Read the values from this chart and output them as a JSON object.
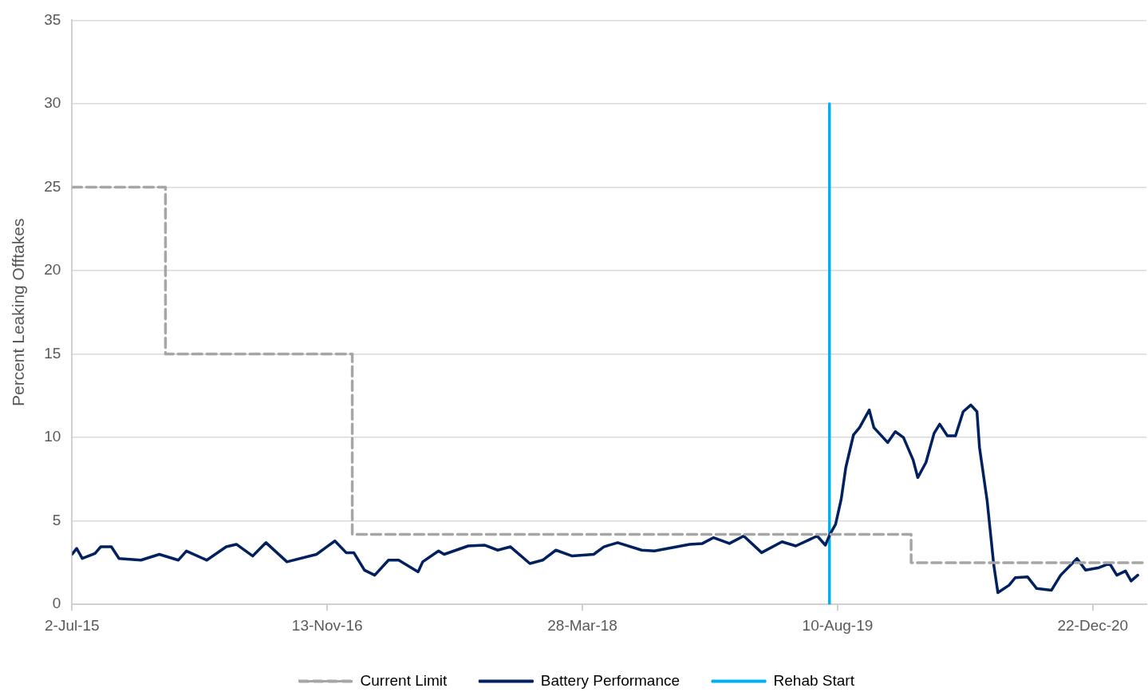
{
  "chart_data": {
    "type": "line",
    "ylabel": "Percent Leaking Offtakes",
    "xlim": [
      "2015-07-02",
      "2021-04-06"
    ],
    "xticks": [
      {
        "value": "2015-07-02",
        "label": "2-Jul-15"
      },
      {
        "value": "2016-11-13",
        "label": "13-Nov-16"
      },
      {
        "value": "2018-03-28",
        "label": "28-Mar-18"
      },
      {
        "value": "2019-08-10",
        "label": "10-Aug-19"
      },
      {
        "value": "2020-12-22",
        "label": "22-Dec-20"
      }
    ],
    "ylim": [
      0,
      35
    ],
    "yticks": [
      0,
      5,
      10,
      15,
      20,
      25,
      30,
      35
    ],
    "grid": "y",
    "legend": "bottom",
    "marker": "none",
    "series": [
      {
        "name": "Current Limit",
        "type": "step",
        "line_style": "dashed",
        "color": "#a6a6a6",
        "x": [
          "2015-07-02",
          "2016-01-01",
          "2017-01-01",
          "2020-01-01",
          "2021-04-06"
        ],
        "values": [
          25,
          15,
          4.2,
          2.5,
          2.5
        ]
      },
      {
        "name": "Battery Performance",
        "line_style": "solid",
        "color": "#002060",
        "x": [
          "2015-07-02",
          "2015-07-11",
          "2015-07-22",
          "2015-08-16",
          "2015-08-27",
          "2015-09-17",
          "2015-10-02",
          "2015-11-14",
          "2015-12-20",
          "2016-01-26",
          "2016-02-11",
          "2016-03-22",
          "2016-04-29",
          "2016-05-19",
          "2016-06-20",
          "2016-07-16",
          "2016-08-26",
          "2016-10-23",
          "2016-11-12",
          "2016-11-28",
          "2016-12-20",
          "2017-01-04",
          "2017-01-25",
          "2017-02-14",
          "2017-03-13",
          "2017-04-02",
          "2017-05-10",
          "2017-05-19",
          "2017-06-19",
          "2017-06-30",
          "2017-08-16",
          "2017-09-17",
          "2017-10-13",
          "2017-11-07",
          "2017-12-15",
          "2018-01-09",
          "2018-02-04",
          "2018-03-08",
          "2018-04-19",
          "2018-05-09",
          "2018-06-05",
          "2018-07-22",
          "2018-08-16",
          "2018-10-24",
          "2018-11-18",
          "2018-12-10",
          "2019-01-10",
          "2019-02-07",
          "2019-03-14",
          "2019-04-23",
          "2019-05-20",
          "2019-07-01",
          "2019-07-17",
          "2019-07-26",
          "2019-08-06",
          "2019-08-17",
          "2019-08-26",
          "2019-09-10",
          "2019-09-22",
          "2019-10-11",
          "2019-10-20",
          "2019-11-16",
          "2019-12-01",
          "2019-12-17",
          "2020-01-05",
          "2020-01-14",
          "2020-01-30",
          "2020-02-15",
          "2020-02-26",
          "2020-03-12",
          "2020-03-28",
          "2020-04-12",
          "2020-04-27",
          "2020-05-09",
          "2020-05-14",
          "2020-05-29",
          "2020-06-11",
          "2020-06-19",
          "2020-07-11",
          "2020-07-23",
          "2020-08-16",
          "2020-09-03",
          "2020-10-02",
          "2020-10-20",
          "2020-11-21",
          "2020-12-08",
          "2021-01-03",
          "2021-01-24",
          "2021-02-07",
          "2021-02-24",
          "2021-03-07",
          "2021-03-20"
        ],
        "values": [
          3.0,
          3.35,
          2.75,
          3.05,
          3.45,
          3.45,
          2.75,
          2.65,
          3.0,
          2.65,
          3.2,
          2.65,
          3.45,
          3.6,
          2.9,
          3.7,
          2.55,
          3.0,
          3.45,
          3.8,
          3.1,
          3.1,
          2.05,
          1.75,
          2.65,
          2.65,
          1.95,
          2.55,
          3.2,
          3.0,
          3.5,
          3.55,
          3.25,
          3.45,
          2.45,
          2.65,
          3.25,
          2.9,
          3.0,
          3.45,
          3.7,
          3.25,
          3.2,
          3.6,
          3.65,
          4.0,
          3.65,
          4.1,
          3.1,
          3.75,
          3.5,
          4.1,
          3.55,
          4.2,
          4.8,
          6.3,
          8.2,
          10.15,
          10.6,
          11.65,
          10.6,
          9.7,
          10.35,
          10.0,
          8.65,
          7.6,
          8.5,
          10.25,
          10.8,
          10.1,
          10.1,
          11.55,
          11.95,
          11.55,
          9.4,
          6.2,
          2.35,
          0.7,
          1.15,
          1.6,
          1.65,
          0.95,
          0.85,
          1.75,
          2.75,
          2.05,
          2.2,
          2.45,
          1.75,
          2.0,
          1.4,
          1.75
        ]
      },
      {
        "name": "Rehab Start",
        "line_style": "solid",
        "color": "#00b0f0",
        "x": [
          "2019-07-25",
          "2019-07-25"
        ],
        "values": [
          0,
          30
        ]
      }
    ]
  }
}
